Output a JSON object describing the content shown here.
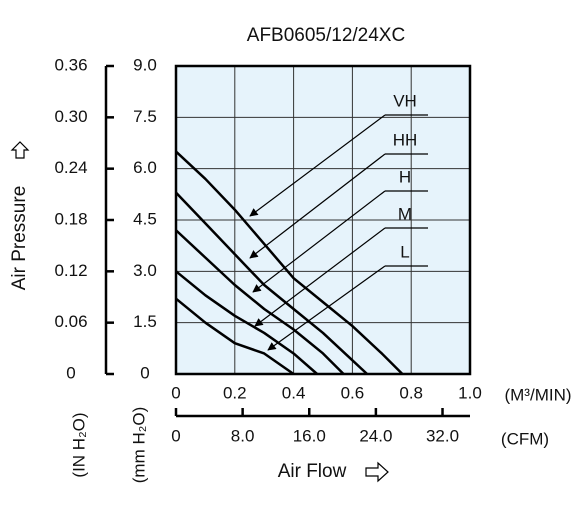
{
  "chart_data": {
    "type": "line",
    "title": "AFB0605/12/24XC",
    "x_label": "Air Flow",
    "y_label": "Air Pressure",
    "x_unit": "(M³/MIN)",
    "x2_unit": "(CFM)",
    "y_unit": "(mm H₂O)",
    "y2_unit": "(IN H₂O)",
    "xlim": [
      0,
      1.0
    ],
    "xticks": [
      0,
      0.2,
      0.4,
      0.6,
      0.8,
      {
        "value": 1.0,
        "label": "1.0"
      }
    ],
    "x2lim": [
      0,
      35.3
    ],
    "x2ticks": [
      0,
      {
        "value": 8,
        "label": "8.0"
      },
      {
        "value": 16,
        "label": "16.0"
      },
      {
        "value": 24,
        "label": "24.0"
      },
      {
        "value": 32,
        "label": "32.0"
      }
    ],
    "ylim": [
      0,
      9
    ],
    "yticks": [
      0,
      1.5,
      {
        "value": 3,
        "label": "3.0"
      },
      4.5,
      {
        "value": 6,
        "label": "6.0"
      },
      7.5,
      {
        "value": 9,
        "label": "9.0"
      }
    ],
    "y2lim": [
      0,
      0.36
    ],
    "y2ticks": [
      0,
      0.06,
      0.12,
      0.18,
      0.24,
      {
        "value": 0.3,
        "label": "0.30"
      },
      0.36
    ],
    "grid": true,
    "background": "#e6f3fb",
    "series": [
      {
        "name": "VH",
        "color": "#000000",
        "x": [
          0,
          0.1,
          0.2,
          0.3,
          0.4,
          0.5,
          0.6,
          0.7,
          0.77
        ],
        "values": [
          6.5,
          5.7,
          4.8,
          3.8,
          2.8,
          2.1,
          1.4,
          0.6,
          0
        ]
      },
      {
        "name": "HH",
        "color": "#000000",
        "x": [
          0,
          0.1,
          0.2,
          0.3,
          0.4,
          0.5,
          0.6,
          0.65
        ],
        "values": [
          5.3,
          4.4,
          3.5,
          2.6,
          1.9,
          1.2,
          0.4,
          0
        ]
      },
      {
        "name": "H",
        "color": "#000000",
        "x": [
          0,
          0.1,
          0.2,
          0.3,
          0.4,
          0.5,
          0.57
        ],
        "values": [
          4.2,
          3.4,
          2.6,
          1.9,
          1.3,
          0.6,
          0
        ]
      },
      {
        "name": "M",
        "color": "#000000",
        "x": [
          0,
          0.1,
          0.2,
          0.3,
          0.4,
          0.48
        ],
        "values": [
          3.0,
          2.3,
          1.7,
          1.2,
          0.6,
          0
        ]
      },
      {
        "name": "L",
        "color": "#000000",
        "x": [
          0,
          0.1,
          0.2,
          0.3,
          0.35,
          0.4
        ],
        "values": [
          2.2,
          1.5,
          0.9,
          0.6,
          0.3,
          0
        ]
      }
    ]
  }
}
